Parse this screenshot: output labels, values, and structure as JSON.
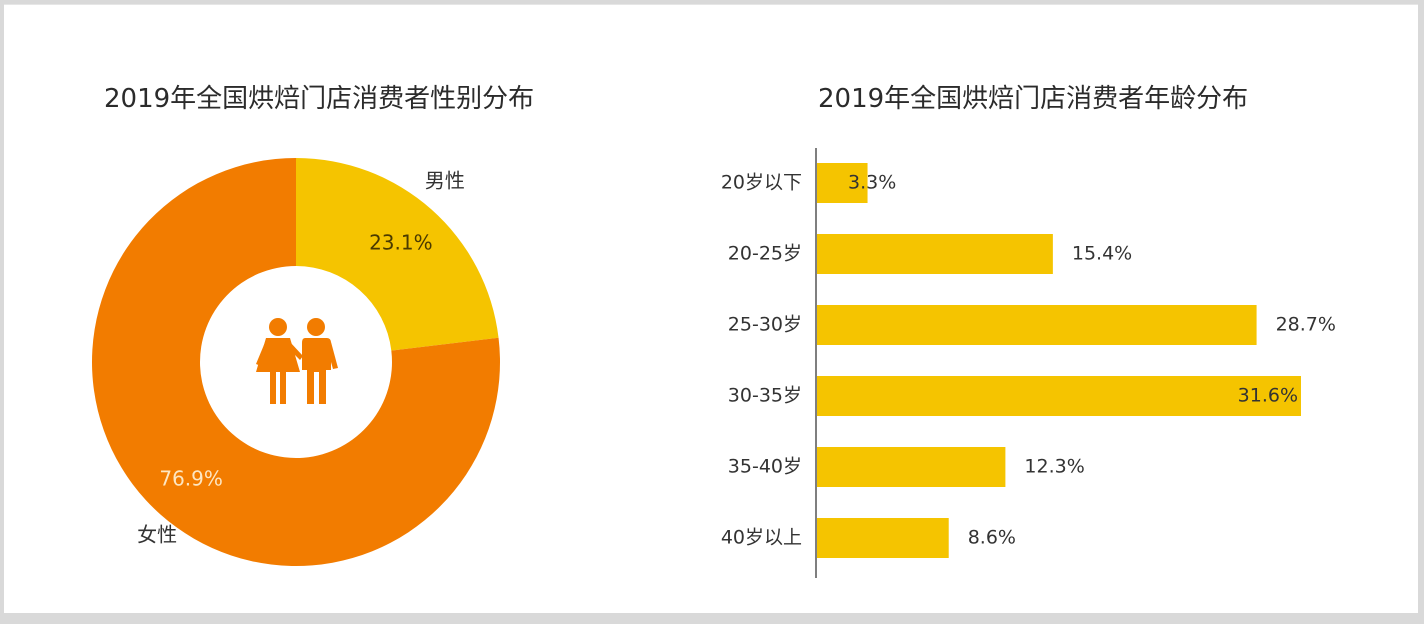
{
  "chart_data": [
    {
      "type": "pie",
      "title": "2019年全国烘焙门店消费者性别分布",
      "donut": true,
      "slices": [
        {
          "label": "男性",
          "value": 23.1,
          "value_label": "23.1%",
          "color": "#f5c400"
        },
        {
          "label": "女性",
          "value": 76.9,
          "value_label": "76.9%",
          "color": "#f27c00"
        }
      ],
      "center_icon": "couple-icon",
      "center_icon_color": "#f27c00"
    },
    {
      "type": "bar",
      "orientation": "horizontal",
      "title": "2019年全国烘焙门店消费者年龄分布",
      "categories": [
        "20岁以下",
        "20-25岁",
        "25-30岁",
        "30-35岁",
        "35-40岁",
        "40岁以上"
      ],
      "values": [
        3.3,
        15.4,
        28.7,
        31.6,
        12.3,
        8.6
      ],
      "value_labels": [
        "3.3%",
        "15.4%",
        "28.7%",
        "31.6%",
        "12.3%",
        "8.6%"
      ],
      "xlim": [
        0,
        31.6
      ],
      "color": "#f5c400"
    }
  ]
}
